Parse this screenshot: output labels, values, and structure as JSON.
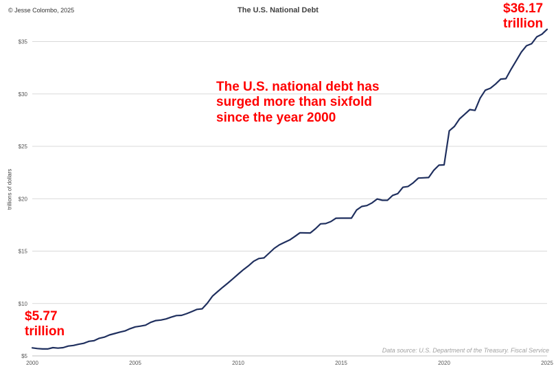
{
  "credit": "© Jesse Colombo, 2025",
  "colors": {
    "line": "#1f2f5e",
    "annotation": "#ff0000",
    "grid": "#d9d9d9"
  },
  "annotations": {
    "main_line1": "The U.S. national debt has",
    "main_line2": "surged more than sixfold",
    "main_line3": "since the year 2000",
    "start_value": "$5.77",
    "start_unit": "trillion",
    "end_value": "$36.17",
    "end_unit": "trillion"
  },
  "source": "Data source: U.S. Department of the Treasury. Fiscal Service",
  "chart_data": {
    "type": "line",
    "title": "The U.S. National Debt",
    "ylabel": "trillions of dollars",
    "xlim": [
      2000,
      2025
    ],
    "ylim": [
      5,
      37
    ],
    "grid": true,
    "xticks": [
      2000,
      2005,
      2010,
      2015,
      2020,
      2025
    ],
    "xtick_labels": [
      "2000",
      "2005",
      "2010",
      "2015",
      "2020",
      "2025"
    ],
    "yticks": [
      5,
      10,
      15,
      20,
      25,
      30,
      35
    ],
    "ytick_labels": [
      "$5",
      "$10",
      "$15",
      "$20",
      "$25",
      "$30",
      "$35"
    ],
    "series": [
      {
        "x": [
          2000.0,
          2000.25,
          2000.5,
          2000.75,
          2001.0,
          2001.25,
          2001.5,
          2001.75,
          2002.0,
          2002.25,
          2002.5,
          2002.75,
          2003.0,
          2003.25,
          2003.5,
          2003.75,
          2004.0,
          2004.25,
          2004.5,
          2004.75,
          2005.0,
          2005.25,
          2005.5,
          2005.75,
          2006.0,
          2006.25,
          2006.5,
          2006.75,
          2007.0,
          2007.25,
          2007.5,
          2007.75,
          2008.0,
          2008.25,
          2008.5,
          2008.75,
          2009.0,
          2009.25,
          2009.5,
          2009.75,
          2010.0,
          2010.25,
          2010.5,
          2010.75,
          2011.0,
          2011.25,
          2011.5,
          2011.75,
          2012.0,
          2012.25,
          2012.5,
          2012.75,
          2013.0,
          2013.25,
          2013.5,
          2013.75,
          2014.0,
          2014.25,
          2014.5,
          2014.75,
          2015.0,
          2015.25,
          2015.5,
          2015.75,
          2016.0,
          2016.25,
          2016.5,
          2016.75,
          2017.0,
          2017.25,
          2017.5,
          2017.75,
          2018.0,
          2018.25,
          2018.5,
          2018.75,
          2019.0,
          2019.25,
          2019.5,
          2019.75,
          2020.0,
          2020.25,
          2020.5,
          2020.75,
          2021.0,
          2021.25,
          2021.5,
          2021.75,
          2022.0,
          2022.25,
          2022.5,
          2022.75,
          2023.0,
          2023.25,
          2023.5,
          2023.75,
          2024.0,
          2024.25,
          2024.5,
          2024.75,
          2025.0
        ],
        "y": [
          5.77,
          5.7,
          5.66,
          5.66,
          5.79,
          5.74,
          5.79,
          5.94,
          6.0,
          6.11,
          6.2,
          6.39,
          6.45,
          6.68,
          6.79,
          7.0,
          7.13,
          7.27,
          7.38,
          7.6,
          7.77,
          7.84,
          7.93,
          8.2,
          8.37,
          8.42,
          8.53,
          8.7,
          8.85,
          8.87,
          9.03,
          9.23,
          9.44,
          9.49,
          10.02,
          10.7,
          11.13,
          11.55,
          11.95,
          12.37,
          12.8,
          13.22,
          13.6,
          14.03,
          14.29,
          14.35,
          14.8,
          15.26,
          15.6,
          15.83,
          16.06,
          16.4,
          16.75,
          16.74,
          16.73,
          17.13,
          17.6,
          17.63,
          17.82,
          18.14,
          18.15,
          18.15,
          18.15,
          18.92,
          19.26,
          19.35,
          19.6,
          19.98,
          19.85,
          19.85,
          20.32,
          20.49,
          21.09,
          21.17,
          21.52,
          21.97,
          22.0,
          22.02,
          22.72,
          23.2,
          23.23,
          26.48,
          26.9,
          27.62,
          28.06,
          28.51,
          28.43,
          29.6,
          30.36,
          30.55,
          30.95,
          31.42,
          31.46,
          32.35,
          33.17,
          34.0,
          34.6,
          34.8,
          35.45,
          35.7,
          36.17
        ]
      }
    ]
  }
}
